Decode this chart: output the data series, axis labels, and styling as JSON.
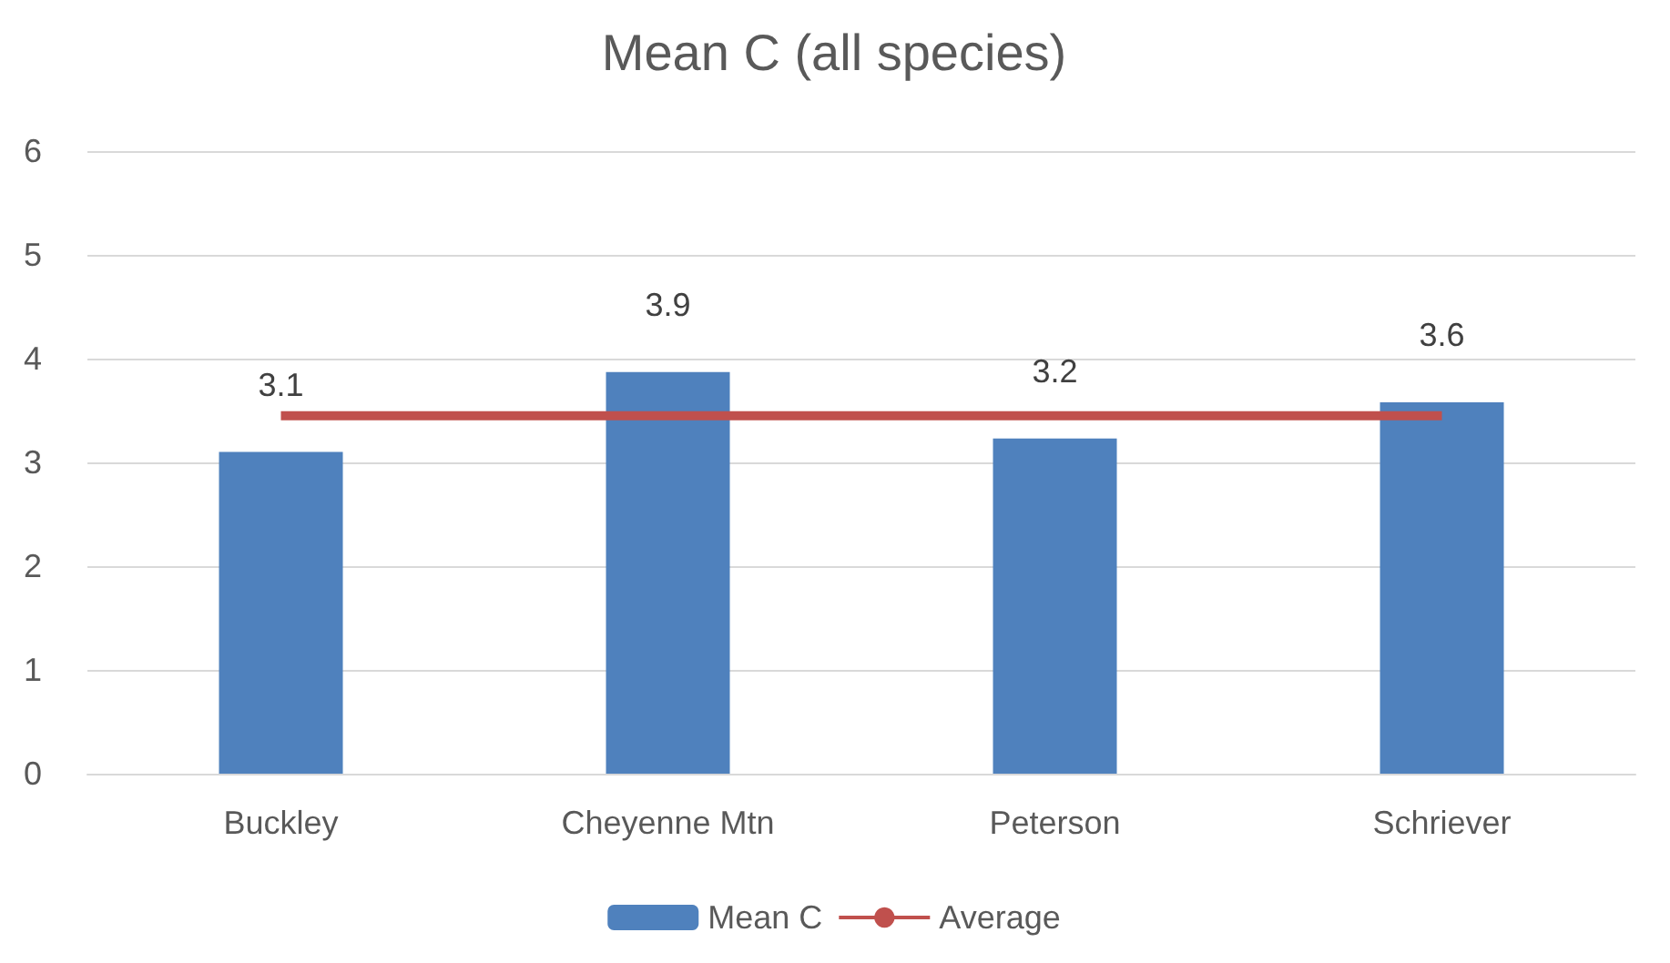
{
  "chart_data": {
    "type": "bar",
    "title": "Mean C (all species)",
    "categories": [
      "Buckley",
      "Cheyenne Mtn",
      "Peterson",
      "Schriever"
    ],
    "series": [
      {
        "name": "Mean C",
        "color": "#4f81bd",
        "values": [
          3.1,
          3.87,
          3.23,
          3.58
        ],
        "value_labels": [
          "3.1",
          "3.9",
          "3.2",
          "3.6"
        ]
      },
      {
        "name": "Average",
        "type": "line",
        "color": "#c0504d",
        "values": [
          3.45,
          3.45,
          3.45,
          3.45
        ]
      }
    ],
    "ylim": [
      0,
      6
    ],
    "yticks": [
      0,
      1,
      2,
      3,
      4,
      5,
      6
    ],
    "grid": "y",
    "legend": "bottom",
    "marker": "none"
  }
}
